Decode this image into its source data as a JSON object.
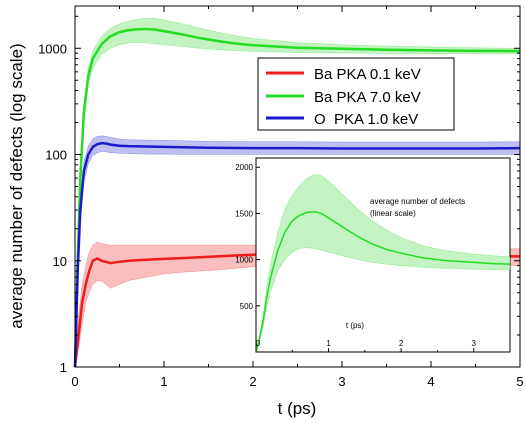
{
  "chart_data": [
    {
      "type": "line",
      "xlabel": "t (ps)",
      "ylabel": "average number of defects (log scale)",
      "xlim": [
        0,
        5
      ],
      "ylim": [
        1,
        2500
      ],
      "yscale": "log",
      "x_ticks": [
        "0",
        "1",
        "2",
        "3",
        "4",
        "5"
      ],
      "y_ticks": [
        "1",
        "10",
        "100",
        "1000"
      ],
      "grid": false,
      "legend_position": "upper-right",
      "series": [
        {
          "name": "Ba PKA 0.1 keV",
          "color": "#ee1c1c",
          "band_color": "#f8b4b4",
          "x": [
            0,
            0.04,
            0.08,
            0.12,
            0.16,
            0.2,
            0.25,
            0.3,
            0.4,
            0.5,
            0.6,
            0.8,
            1.0,
            1.2,
            1.4,
            1.6,
            1.8,
            2.0,
            2.3,
            2.6,
            3.0,
            3.5,
            4.0,
            4.5,
            5.0
          ],
          "y": [
            1,
            2,
            4,
            6,
            8,
            10,
            10.5,
            10,
            9.5,
            9.8,
            10,
            10.2,
            10.4,
            10.6,
            10.8,
            11,
            11.2,
            11.4,
            11.5,
            11.3,
            11.2,
            11.1,
            11,
            11,
            11
          ],
          "y_low": [
            1,
            1.5,
            2.5,
            4,
            5,
            6,
            6.5,
            6.5,
            5.5,
            6,
            6.5,
            7,
            7.5,
            7.8,
            8,
            8.2,
            8.5,
            8.8,
            9,
            9,
            9,
            9,
            9,
            9,
            9
          ],
          "y_high": [
            1,
            3,
            6,
            9,
            12,
            14,
            15,
            14.5,
            14,
            14,
            14,
            14,
            14,
            14,
            14,
            14,
            14,
            14,
            14,
            13.5,
            13.5,
            13,
            13,
            13,
            13
          ]
        },
        {
          "name": "Ba PKA 7.0 keV",
          "color": "#22dd22",
          "band_color": "#b8f0b8",
          "x": [
            0,
            0.03,
            0.06,
            0.1,
            0.15,
            0.2,
            0.3,
            0.4,
            0.5,
            0.6,
            0.7,
            0.8,
            0.9,
            1.0,
            1.2,
            1.4,
            1.6,
            1.8,
            2.0,
            2.5,
            3.0,
            3.5,
            4.0,
            4.5,
            5.0
          ],
          "y": [
            1,
            10,
            60,
            250,
            550,
            800,
            1100,
            1300,
            1420,
            1480,
            1510,
            1520,
            1500,
            1450,
            1350,
            1250,
            1170,
            1110,
            1070,
            1010,
            990,
            970,
            955,
            945,
            940
          ],
          "y_low": [
            1,
            8,
            45,
            200,
            450,
            650,
            880,
            1000,
            1080,
            1120,
            1130,
            1120,
            1100,
            1080,
            1040,
            1000,
            970,
            950,
            935,
            910,
            900,
            895,
            890,
            885,
            885
          ],
          "y_high": [
            1,
            12,
            75,
            300,
            650,
            950,
            1300,
            1550,
            1700,
            1800,
            1880,
            1920,
            1910,
            1850,
            1700,
            1550,
            1420,
            1320,
            1240,
            1130,
            1080,
            1050,
            1030,
            1010,
            1000
          ]
        },
        {
          "name": "O  PKA 1.0 keV",
          "color": "#1a1acc",
          "band_color": "#b4b4f0",
          "x": [
            0,
            0.03,
            0.06,
            0.1,
            0.15,
            0.2,
            0.25,
            0.3,
            0.35,
            0.4,
            0.5,
            0.6,
            0.8,
            1.0,
            1.2,
            1.5,
            2.0,
            2.5,
            3.0,
            3.5,
            4.0,
            4.5,
            5.0
          ],
          "y": [
            1,
            8,
            30,
            70,
            100,
            118,
            125,
            128,
            127,
            124,
            121,
            120,
            119,
            118,
            117,
            116,
            115,
            115,
            114,
            114,
            114,
            114,
            115
          ],
          "y_low": [
            1,
            6,
            22,
            55,
            82,
            98,
            104,
            107,
            106,
            104,
            103,
            102,
            101,
            101,
            100,
            100,
            100,
            100,
            100,
            100,
            100,
            100,
            100
          ],
          "y_high": [
            1,
            10,
            38,
            85,
            120,
            140,
            148,
            150,
            148,
            145,
            140,
            138,
            137,
            136,
            135,
            133,
            132,
            132,
            131,
            131,
            131,
            131,
            132
          ]
        }
      ]
    },
    {
      "type": "line",
      "title": "average number of defects",
      "subtitle": "(linear scale)",
      "xlabel": "t (ps)",
      "ylabel": "",
      "xlim": [
        0,
        3.5
      ],
      "ylim": [
        0,
        2100
      ],
      "x_ticks": [
        "0",
        "1",
        "2",
        "3"
      ],
      "y_ticks": [
        "500",
        "1000",
        "1500",
        "2000"
      ],
      "grid": false,
      "series": [
        {
          "name": "Ba PKA 7.0 keV",
          "color": "#22dd22",
          "band_color": "#b8f0b8",
          "x": [
            0,
            0.05,
            0.1,
            0.15,
            0.2,
            0.3,
            0.4,
            0.5,
            0.6,
            0.7,
            0.8,
            0.9,
            1.0,
            1.2,
            1.4,
            1.6,
            1.8,
            2.0,
            2.3,
            2.6,
            3.0,
            3.3,
            3.5
          ],
          "y": [
            0,
            150,
            350,
            600,
            800,
            1100,
            1300,
            1420,
            1480,
            1510,
            1520,
            1500,
            1450,
            1350,
            1250,
            1170,
            1110,
            1070,
            1020,
            990,
            970,
            955,
            950
          ],
          "y_low": [
            0,
            120,
            280,
            480,
            650,
            880,
            1000,
            1080,
            1120,
            1130,
            1120,
            1100,
            1080,
            1040,
            1000,
            970,
            950,
            935,
            915,
            905,
            895,
            890,
            888
          ],
          "y_high": [
            0,
            180,
            420,
            720,
            950,
            1300,
            1550,
            1700,
            1800,
            1880,
            1920,
            1910,
            1850,
            1700,
            1550,
            1420,
            1320,
            1240,
            1150,
            1100,
            1060,
            1040,
            1030
          ]
        }
      ]
    }
  ]
}
